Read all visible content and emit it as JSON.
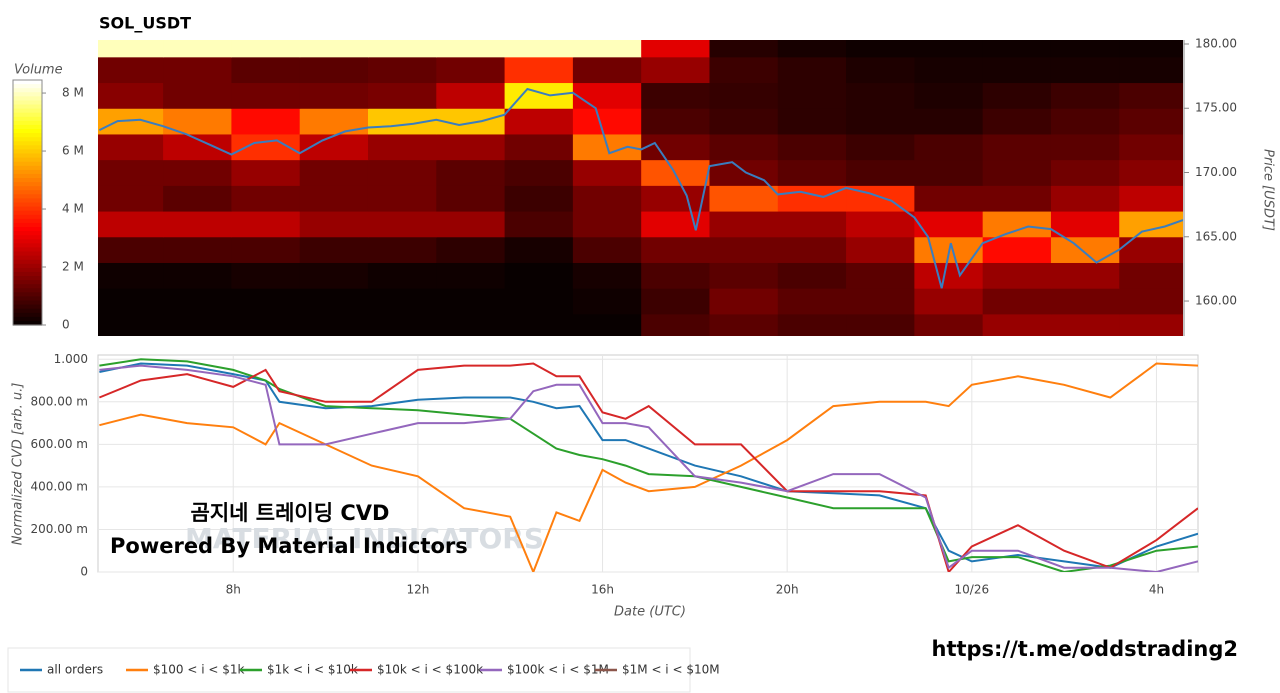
{
  "chart_data": [
    {
      "type": "heatmap",
      "title": "SOL_USDT",
      "colorbar_label": "Volume",
      "y2_label": "Price [USDT]",
      "xlim": [
        5.07,
        28.9
      ],
      "y2lim": [
        157.28,
        180.31
      ],
      "y2ticks": [
        {
          "value": 160,
          "label": "160.00"
        },
        {
          "value": 165,
          "label": "165.00"
        },
        {
          "value": 170,
          "label": "170.00"
        },
        {
          "value": 175,
          "label": "175.00"
        },
        {
          "value": 180,
          "label": "180.00"
        }
      ],
      "clim": [
        0,
        8450000.0
      ],
      "cticks": [
        0,
        {
          "value": 2000000.0,
          "label": "2 M"
        },
        {
          "value": 4000000.0,
          "label": "4 M"
        },
        {
          "value": 6000000.0,
          "label": "6 M"
        },
        {
          "value": 8000000.0,
          "label": "8 M"
        }
      ],
      "x_edges": [
        5,
        6.5,
        8,
        9.5,
        11,
        12.5,
        14,
        15.5,
        17,
        18.5,
        20,
        21.5,
        23,
        24.5,
        26,
        27.5,
        29
      ],
      "price_edges": [
        157,
        159,
        161,
        163,
        165,
        167,
        169,
        171,
        173,
        175,
        177,
        179,
        181
      ],
      "volume": [
        [
          100000.0,
          100000.0,
          100000.0,
          100000.0,
          100000.0,
          100000.0,
          100000.0,
          100000.0,
          1000000.0,
          1200000.0,
          1000000.0,
          1000000.0,
          1500000.0,
          2000000.0,
          2000000.0,
          2000000.0
        ],
        [
          100000.0,
          100000.0,
          100000.0,
          100000.0,
          100000.0,
          100000.0,
          100000.0,
          200000.0,
          800000.0,
          1500000.0,
          1200000.0,
          1200000.0,
          2000000.0,
          1500000.0,
          1500000.0,
          1500000.0
        ],
        [
          200000.0,
          200000.0,
          300000.0,
          300000.0,
          200000.0,
          200000.0,
          100000.0,
          300000.0,
          1000000.0,
          1200000.0,
          1000000.0,
          1200000.0,
          2500000.0,
          2000000.0,
          2000000.0,
          1500000.0
        ],
        [
          1000000.0,
          1000000.0,
          1000000.0,
          800000.0,
          800000.0,
          600000.0,
          300000.0,
          1000000.0,
          1500000.0,
          1500000.0,
          1500000.0,
          2000000.0,
          5000000.0,
          3500000.0,
          5000000.0,
          2000000.0
        ],
        [
          2500000.0,
          2500000.0,
          2500000.0,
          2000000.0,
          2000000.0,
          2000000.0,
          1000000.0,
          1500000.0,
          3000000.0,
          2000000.0,
          2000000.0,
          2500000.0,
          3000000.0,
          5000000.0,
          3000000.0,
          5500000.0
        ],
        [
          1500000.0,
          1200000.0,
          1500000.0,
          1500000.0,
          1500000.0,
          1200000.0,
          800000.0,
          1500000.0,
          2000000.0,
          4500000.0,
          4000000.0,
          4000000.0,
          1500000.0,
          1500000.0,
          2000000.0,
          2500000.0
        ],
        [
          1500000.0,
          1500000.0,
          2000000.0,
          1500000.0,
          1500000.0,
          1200000.0,
          1000000.0,
          2000000.0,
          4500000.0,
          1500000.0,
          1200000.0,
          1000000.0,
          1000000.0,
          1200000.0,
          1500000.0,
          1800000.0
        ],
        [
          2000000.0,
          2500000.0,
          4000000.0,
          2500000.0,
          2000000.0,
          2000000.0,
          1500000.0,
          5000000.0,
          1500000.0,
          1200000.0,
          1000000.0,
          800000.0,
          1000000.0,
          1200000.0,
          1200000.0,
          1500000.0
        ],
        [
          5500000.0,
          5000000.0,
          3500000.0,
          5000000.0,
          6000000.0,
          6000000.0,
          2500000.0,
          3500000.0,
          1000000.0,
          800000.0,
          600000.0,
          500000.0,
          500000.0,
          800000.0,
          1000000.0,
          1200000.0
        ],
        [
          1800000.0,
          1500000.0,
          1500000.0,
          1500000.0,
          1600000.0,
          2500000.0,
          6500000.0,
          3000000.0,
          800000.0,
          700000.0,
          600000.0,
          500000.0,
          400000.0,
          600000.0,
          800000.0,
          1000000.0
        ],
        [
          1500000.0,
          1500000.0,
          1200000.0,
          1200000.0,
          1300000.0,
          1500000.0,
          4000000.0,
          1500000.0,
          2000000.0,
          800000.0,
          600000.0,
          400000.0,
          300000.0,
          300000.0,
          300000.0,
          300000.0
        ],
        [
          8000000.0,
          8000000.0,
          8000000.0,
          8000000.0,
          8000000.0,
          8000000.0,
          8000000.0,
          8000000.0,
          3000000.0,
          500000.0,
          300000.0,
          200000.0,
          200000.0,
          200000.0,
          200000.0,
          200000.0
        ]
      ],
      "price_color": "#3a7dbf",
      "price_x": [
        5.1,
        5.5,
        6,
        6.5,
        7,
        7.5,
        8,
        8.5,
        9,
        9.5,
        10,
        10.5,
        11,
        11.5,
        12,
        12.5,
        13,
        13.5,
        14,
        14.5,
        15,
        15.5,
        16,
        16.3,
        16.7,
        17,
        17.3,
        17.7,
        18,
        18.2,
        18.5,
        19,
        19.3,
        19.7,
        20,
        20.5,
        21,
        21.5,
        22,
        22.5,
        23,
        23.3,
        23.6,
        23.8,
        24,
        24.5,
        25,
        25.5,
        26,
        26.5,
        27,
        27.5,
        28,
        28.5,
        28.9
      ],
      "price": [
        173.3,
        174,
        174.1,
        173.6,
        173,
        172.2,
        171.4,
        172.3,
        172.5,
        171.5,
        172.5,
        173.2,
        173.5,
        173.6,
        173.8,
        174.1,
        173.7,
        174,
        174.5,
        176.5,
        176,
        176.2,
        175,
        171.5,
        172,
        171.8,
        172.3,
        170.2,
        168.2,
        165.5,
        170.5,
        170.8,
        170,
        169.4,
        168.3,
        168.5,
        168.1,
        168.8,
        168.4,
        167.8,
        166.5,
        165,
        161,
        164.5,
        162,
        164.5,
        165.2,
        165.8,
        165.6,
        164.5,
        163,
        164,
        165.4,
        165.8,
        166.3
      ]
    },
    {
      "type": "line",
      "xlabel": "Date (UTC)",
      "ylabel": "Normalized CVD [arb. u.]",
      "watermark": "MATERIAL INDICATORS",
      "annotations": [
        "곰지네 트레이딩 CVD",
        "Powered By Material Indictors",
        "https://t.me/oddstrading2"
      ],
      "xlim": [
        5.07,
        28.9
      ],
      "ylim": [
        0,
        1.02
      ],
      "grid": true,
      "xticks": [
        {
          "value": 8,
          "label": "8h"
        },
        {
          "value": 12,
          "label": "12h"
        },
        {
          "value": 16,
          "label": "16h"
        },
        {
          "value": 20,
          "label": "20h"
        },
        {
          "value": 24,
          "label": "10/26"
        },
        {
          "value": 28,
          "label": "4h"
        }
      ],
      "yticks": [
        0,
        {
          "value": 0.2,
          "label": "200.00 m"
        },
        {
          "value": 0.4,
          "label": "400.00 m"
        },
        {
          "value": 0.6,
          "label": "600.00 m"
        },
        {
          "value": 0.8,
          "label": "800.00 m"
        },
        {
          "value": 1,
          "label": "1.000"
        }
      ],
      "x": [
        5.1,
        6,
        7,
        8,
        8.7,
        9,
        10,
        11,
        12,
        13,
        14,
        14.5,
        15,
        15.5,
        16,
        16.5,
        17,
        18,
        19,
        20,
        21,
        22,
        23,
        23.5,
        24,
        25,
        26,
        27,
        28,
        28.9
      ],
      "series": [
        {
          "name": "all orders",
          "color": "#1f77b4",
          "values": [
            0.94,
            0.98,
            0.97,
            0.93,
            0.9,
            0.8,
            0.77,
            0.78,
            0.81,
            0.82,
            0.82,
            0.8,
            0.77,
            0.78,
            0.62,
            0.62,
            0.58,
            0.5,
            0.45,
            0.38,
            0.37,
            0.36,
            0.3,
            0.1,
            0.05,
            0.08,
            0.05,
            0.02,
            0.12,
            0.18
          ]
        },
        {
          "name": "$100 < i < $1k",
          "color": "#ff7f0e",
          "values": [
            0.69,
            0.74,
            0.7,
            0.68,
            0.6,
            0.7,
            0.6,
            0.5,
            0.45,
            0.3,
            0.26,
            0.0,
            0.28,
            0.24,
            0.48,
            0.42,
            0.38,
            0.4,
            0.5,
            0.62,
            0.78,
            0.8,
            0.8,
            0.78,
            0.88,
            0.92,
            0.88,
            0.82,
            0.98,
            0.97
          ]
        },
        {
          "name": "$1k < i < $10k",
          "color": "#2ca02c",
          "values": [
            0.97,
            1.0,
            0.99,
            0.95,
            0.9,
            0.86,
            0.78,
            0.77,
            0.76,
            0.74,
            0.72,
            0.65,
            0.58,
            0.55,
            0.53,
            0.5,
            0.46,
            0.45,
            0.4,
            0.35,
            0.3,
            0.3,
            0.3,
            0.05,
            0.07,
            0.07,
            0.0,
            0.03,
            0.1,
            0.12
          ]
        },
        {
          "name": "$10k < i < $100k",
          "color": "#d62728",
          "values": [
            0.82,
            0.9,
            0.93,
            0.87,
            0.95,
            0.85,
            0.8,
            0.8,
            0.95,
            0.97,
            0.97,
            0.98,
            0.92,
            0.92,
            0.75,
            0.72,
            0.78,
            0.6,
            0.6,
            0.38,
            0.38,
            0.38,
            0.36,
            0.0,
            0.12,
            0.22,
            0.1,
            0.02,
            0.15,
            0.3
          ]
        },
        {
          "name": "$100k < i < $1M",
          "color": "#9467bd",
          "values": [
            0.95,
            0.97,
            0.95,
            0.92,
            0.88,
            0.6,
            0.6,
            0.65,
            0.7,
            0.7,
            0.72,
            0.85,
            0.88,
            0.88,
            0.7,
            0.7,
            0.68,
            0.45,
            0.42,
            0.38,
            0.46,
            0.46,
            0.35,
            0.02,
            0.1,
            0.1,
            0.02,
            0.02,
            0.0,
            0.05
          ]
        },
        {
          "name": "$1M < i < $10M",
          "color": "#8c564b",
          "values": [
            null,
            null,
            null,
            null,
            null,
            null,
            null,
            null,
            null,
            null,
            null,
            null,
            null,
            null,
            null,
            null,
            null,
            null,
            null,
            null,
            null,
            null,
            null,
            null,
            null,
            null,
            null,
            null,
            null,
            null
          ]
        }
      ]
    }
  ]
}
